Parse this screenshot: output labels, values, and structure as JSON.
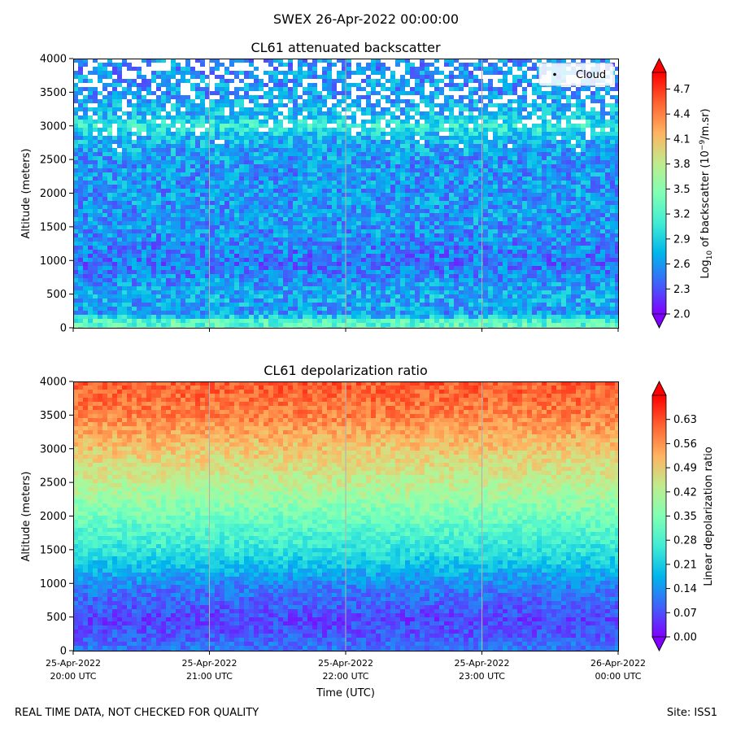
{
  "suptitle": "SWEX 26-Apr-2022 00:00:00",
  "footer": {
    "left": "REAL TIME DATA, NOT CHECKED FOR QUALITY",
    "right": "Site: ISS1"
  },
  "chart_data": [
    {
      "type": "heatmap",
      "title": "CL61 attenuated backscatter",
      "ylabel": "Altitude (meters)",
      "xlabel": "",
      "ylim": [
        0,
        4000
      ],
      "yticks": [
        0,
        500,
        1000,
        1500,
        2000,
        2500,
        3000,
        3500,
        4000
      ],
      "xticks": [
        [
          "25-Apr-2022",
          "20:00 UTC"
        ],
        [
          "25-Apr-2022",
          "21:00 UTC"
        ],
        [
          "25-Apr-2022",
          "22:00 UTC"
        ],
        [
          "25-Apr-2022",
          "23:00 UTC"
        ],
        [
          "26-Apr-2022",
          "00:00 UTC"
        ]
      ],
      "xtick_labels_visible": false,
      "vertical_gridlines": true,
      "legend": {
        "entries": [
          "Cloud"
        ],
        "placement": "top-right"
      },
      "colorbar": {
        "label_main": "Log",
        "label_sub": "10",
        "label_mid": " of backscatter (10",
        "label_sup": "−9",
        "label_end": "/m.sr)",
        "min": 2.0,
        "max": 4.9,
        "extend": "both",
        "ticks": [
          "2.0",
          "2.3",
          "2.6",
          "2.9",
          "3.2",
          "3.5",
          "3.8",
          "4.1",
          "4.4",
          "4.7"
        ],
        "colormap": "rainbow"
      },
      "profile": {
        "altitude_m": [
          0,
          150,
          250,
          500,
          700,
          1000,
          1200,
          1500,
          2000,
          2500,
          2850,
          3000,
          3150,
          3500,
          4000
        ],
        "value": [
          3.35,
          3.2,
          2.6,
          2.7,
          2.6,
          2.45,
          2.5,
          2.6,
          2.6,
          2.6,
          2.75,
          3.1,
          2.8,
          2.6,
          2.55
        ]
      }
    },
    {
      "type": "heatmap",
      "title": "CL61 depolarization ratio",
      "ylabel": "Altitude (meters)",
      "xlabel": "Time (UTC)",
      "ylim": [
        0,
        4000
      ],
      "yticks": [
        0,
        500,
        1000,
        1500,
        2000,
        2500,
        3000,
        3500,
        4000
      ],
      "xticks": [
        [
          "25-Apr-2022",
          "20:00 UTC"
        ],
        [
          "25-Apr-2022",
          "21:00 UTC"
        ],
        [
          "25-Apr-2022",
          "22:00 UTC"
        ],
        [
          "25-Apr-2022",
          "23:00 UTC"
        ],
        [
          "26-Apr-2022",
          "00:00 UTC"
        ]
      ],
      "xtick_labels_visible": true,
      "vertical_gridlines": true,
      "colorbar": {
        "label": "Linear depolarization ratio",
        "min": 0.0,
        "max": 0.7,
        "extend": "both",
        "ticks": [
          "0.00",
          "0.07",
          "0.14",
          "0.21",
          "0.28",
          "0.35",
          "0.42",
          "0.49",
          "0.56",
          "0.63"
        ],
        "colormap": "rainbow"
      },
      "profile": {
        "altitude_m": [
          0,
          250,
          500,
          1000,
          1500,
          2000,
          2500,
          3000,
          3500,
          4000
        ],
        "value": [
          0.12,
          0.08,
          0.06,
          0.12,
          0.24,
          0.33,
          0.43,
          0.5,
          0.58,
          0.62
        ]
      }
    }
  ]
}
